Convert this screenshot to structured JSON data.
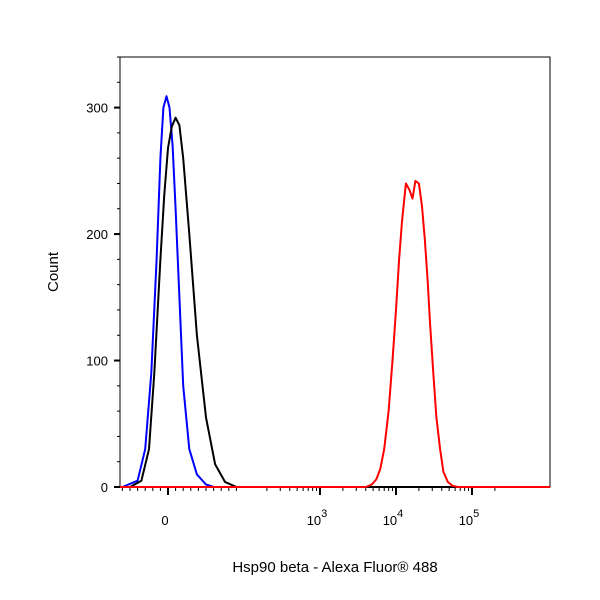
{
  "chart_data": {
    "type": "line",
    "title": "",
    "xlabel": "Hsp90 beta - Alexa Fluor® 488",
    "ylabel": "Count",
    "xscale": "biexponential",
    "ylim": [
      0,
      340
    ],
    "yticks": [
      {
        "value": 0,
        "label": "0"
      },
      {
        "value": 100,
        "label": "100"
      },
      {
        "value": 200,
        "label": "200"
      },
      {
        "value": 300,
        "label": "300"
      }
    ],
    "xticks": [
      {
        "value": 0,
        "label": "0",
        "sup": ""
      },
      {
        "value": 1000,
        "label": "10",
        "sup": "3"
      },
      {
        "value": 10000,
        "label": "10",
        "sup": "4"
      },
      {
        "value": 100000,
        "label": "10",
        "sup": "5"
      }
    ],
    "grid": false,
    "legend": "none",
    "series": [
      {
        "color": "#0000ff",
        "points": [
          [
            -60,
            0
          ],
          [
            -40,
            5
          ],
          [
            -30,
            30
          ],
          [
            -22,
            90
          ],
          [
            -15,
            180
          ],
          [
            -10,
            260
          ],
          [
            -6,
            300
          ],
          [
            -2,
            309
          ],
          [
            2,
            300
          ],
          [
            6,
            270
          ],
          [
            10,
            220
          ],
          [
            15,
            150
          ],
          [
            20,
            80
          ],
          [
            28,
            30
          ],
          [
            38,
            10
          ],
          [
            50,
            2
          ],
          [
            60,
            0
          ]
        ]
      },
      {
        "color": "#000000",
        "points": [
          [
            -50,
            0
          ],
          [
            -35,
            5
          ],
          [
            -25,
            30
          ],
          [
            -18,
            90
          ],
          [
            -10,
            180
          ],
          [
            -5,
            230
          ],
          [
            0,
            268
          ],
          [
            5,
            285
          ],
          [
            10,
            292
          ],
          [
            15,
            286
          ],
          [
            20,
            260
          ],
          [
            28,
            200
          ],
          [
            38,
            120
          ],
          [
            50,
            55
          ],
          [
            62,
            18
          ],
          [
            75,
            4
          ],
          [
            90,
            0
          ]
        ]
      },
      {
        "color": "#ff0000",
        "points": [
          [
            4000,
            0
          ],
          [
            4800,
            2
          ],
          [
            5500,
            6
          ],
          [
            6200,
            14
          ],
          [
            7000,
            30
          ],
          [
            8000,
            60
          ],
          [
            9000,
            100
          ],
          [
            10000,
            140
          ],
          [
            11000,
            180
          ],
          [
            12000,
            210
          ],
          [
            13500,
            240
          ],
          [
            15000,
            235
          ],
          [
            16500,
            228
          ],
          [
            18000,
            242
          ],
          [
            20000,
            240
          ],
          [
            22000,
            222
          ],
          [
            24000,
            195
          ],
          [
            26000,
            165
          ],
          [
            28000,
            130
          ],
          [
            31000,
            90
          ],
          [
            34000,
            55
          ],
          [
            38000,
            30
          ],
          [
            42000,
            12
          ],
          [
            48000,
            4
          ],
          [
            55000,
            1
          ],
          [
            65000,
            0
          ]
        ]
      }
    ]
  }
}
